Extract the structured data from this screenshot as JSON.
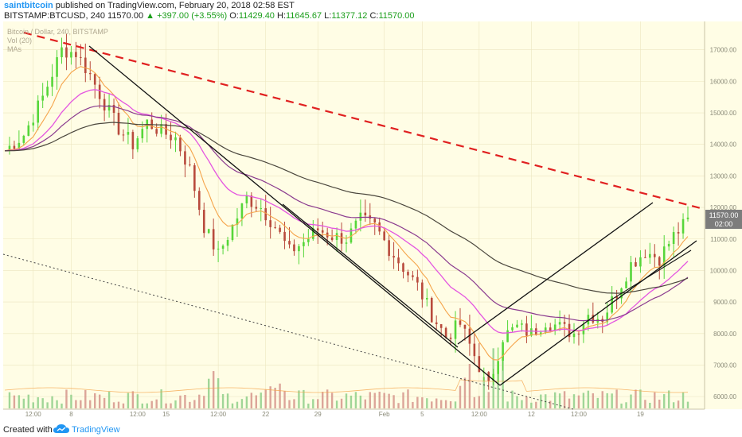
{
  "header": {
    "author": "saintbitcoin",
    "published_text": "published on TradingView.com, February 20, 2018 02:58 EST",
    "symbol": "BITSTAMP:BTCUSD, 240",
    "last": "11570.00",
    "change": "+397.00 (+3.55%)",
    "o_label": "O:",
    "o_value": "11429.40",
    "h_label": "H:",
    "h_value": "11645.67",
    "l_label": "L:",
    "l_value": "11377.12",
    "c_label": "C:",
    "c_value": "11570.00"
  },
  "legend": {
    "line1": "Bitcoin / Dollar, 240, BITSTAMP",
    "line2": "Vol (20)",
    "line3": "MAs"
  },
  "price_box": {
    "price": "11570.00",
    "countdown": "02:00"
  },
  "footer": {
    "created_with": "Created with",
    "brand": "TradingView"
  },
  "colors": {
    "background": "#fffde5",
    "candle_up": "#56d63a",
    "candle_down": "#b84a3c",
    "ma_fast": "#f5a44a",
    "ma_mid": "#e455e0",
    "ma_slow": "#8a3a8e",
    "ma_long": "#4a463c",
    "resistance": "#e02020",
    "channel": "#111111",
    "price_box": "#8a8a8a"
  },
  "chart_data": {
    "type": "candlestick",
    "symbol": "BTCUSD",
    "exchange": "BITSTAMP",
    "interval": "240",
    "y_ticks": [
      "17000.00",
      "16000.00",
      "15000.00",
      "14000.00",
      "13000.00",
      "12000.00",
      "11000.00",
      "10000.00",
      "9000.00",
      "8000.00",
      "7000.00",
      "6000.00"
    ],
    "x_ticks": [
      "12:00",
      "8",
      "12:00",
      "15",
      "12:00",
      "22",
      "29",
      "Feb",
      "5",
      "12:00",
      "12",
      "12:00",
      "19"
    ],
    "ylim": [
      5600,
      17900
    ],
    "price_path": [
      {
        "t": 0,
        "p": 13800
      },
      {
        "t": 4,
        "p": 14300
      },
      {
        "t": 8,
        "p": 15500
      },
      {
        "t": 12,
        "p": 17000
      },
      {
        "t": 15,
        "p": 16900
      },
      {
        "t": 18,
        "p": 16200
      },
      {
        "t": 21,
        "p": 15300
      },
      {
        "t": 24,
        "p": 14500
      },
      {
        "t": 27,
        "p": 14000
      },
      {
        "t": 30,
        "p": 14700
      },
      {
        "t": 33,
        "p": 14400
      },
      {
        "t": 36,
        "p": 14200
      },
      {
        "t": 39,
        "p": 13200
      },
      {
        "t": 42,
        "p": 11400
      },
      {
        "t": 45,
        "p": 10500
      },
      {
        "t": 48,
        "p": 11400
      },
      {
        "t": 51,
        "p": 12300
      },
      {
        "t": 54,
        "p": 12000
      },
      {
        "t": 57,
        "p": 11400
      },
      {
        "t": 60,
        "p": 10600
      },
      {
        "t": 63,
        "p": 10900
      },
      {
        "t": 66,
        "p": 11300
      },
      {
        "t": 69,
        "p": 11100
      },
      {
        "t": 72,
        "p": 11000
      },
      {
        "t": 75,
        "p": 11600
      },
      {
        "t": 78,
        "p": 11400
      },
      {
        "t": 81,
        "p": 10700
      },
      {
        "t": 84,
        "p": 10100
      },
      {
        "t": 87,
        "p": 9500
      },
      {
        "t": 90,
        "p": 8600
      },
      {
        "t": 93,
        "p": 7900
      },
      {
        "t": 96,
        "p": 8300
      },
      {
        "t": 99,
        "p": 7300
      },
      {
        "t": 102,
        "p": 6300
      },
      {
        "t": 105,
        "p": 7900
      },
      {
        "t": 108,
        "p": 8200
      },
      {
        "t": 111,
        "p": 8000
      },
      {
        "t": 114,
        "p": 8400
      },
      {
        "t": 117,
        "p": 8200
      },
      {
        "t": 120,
        "p": 8000
      },
      {
        "t": 123,
        "p": 8600
      },
      {
        "t": 126,
        "p": 8500
      },
      {
        "t": 129,
        "p": 9300
      },
      {
        "t": 132,
        "p": 10200
      },
      {
        "t": 135,
        "p": 10600
      },
      {
        "t": 138,
        "p": 10400
      },
      {
        "t": 141,
        "p": 11100
      },
      {
        "t": 144,
        "p": 11570
      }
    ],
    "trendlines": [
      "resistance (dashed red)",
      "descending channel",
      "ascending channel",
      "dotted support"
    ]
  }
}
